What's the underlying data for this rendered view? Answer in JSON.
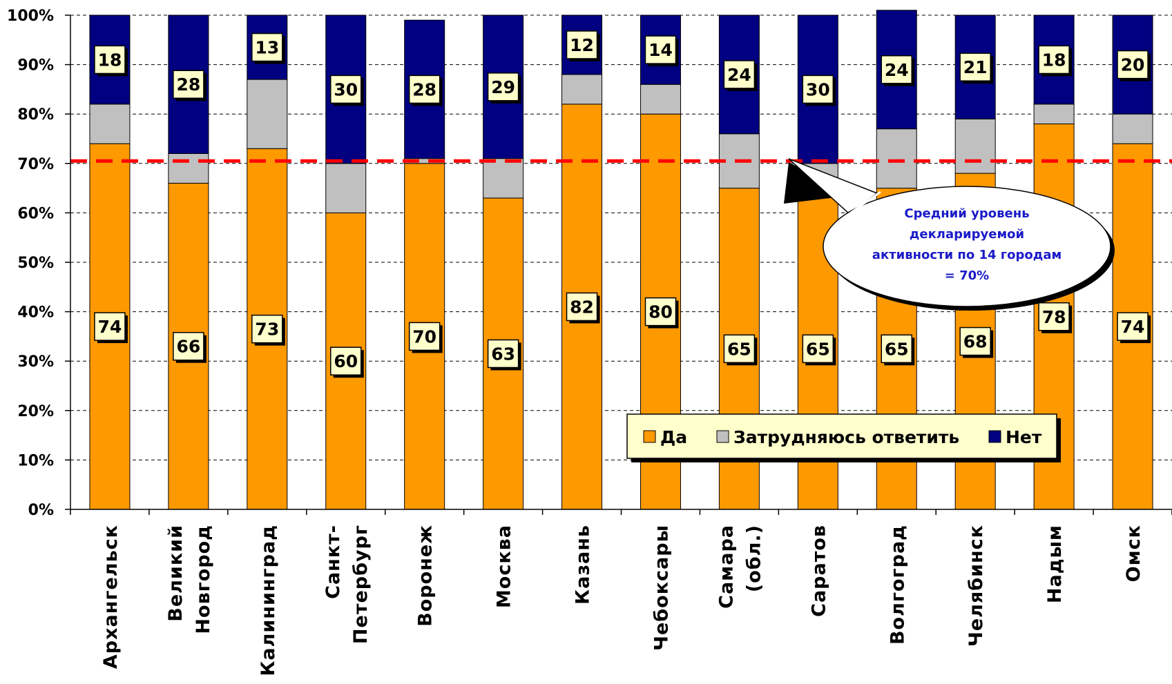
{
  "chart_data": {
    "type": "bar",
    "stacked": true,
    "percent": true,
    "categories": [
      [
        "Архангельск"
      ],
      [
        "Великий",
        "Новгород"
      ],
      [
        "Калининград"
      ],
      [
        "Санкт-",
        "Петербург"
      ],
      [
        "Воронеж"
      ],
      [
        "Москва"
      ],
      [
        "Казань"
      ],
      [
        "Чебоксары"
      ],
      [
        "Самара",
        "(обл.)"
      ],
      [
        "Саратов"
      ],
      [
        "Волгоград"
      ],
      [
        "Челябинск"
      ],
      [
        "Надым"
      ],
      [
        "Омск"
      ]
    ],
    "series": [
      {
        "name": "Да",
        "color": "#FF9900",
        "values": [
          74,
          66,
          73,
          60,
          70,
          63,
          82,
          80,
          65,
          65,
          65,
          68,
          78,
          74
        ]
      },
      {
        "name": "Затрудняюсь ответить",
        "color": "#C0C0C0",
        "values": [
          8,
          6,
          14,
          10,
          1,
          8,
          6,
          6,
          11,
          5,
          12,
          11,
          4,
          6
        ]
      },
      {
        "name": "Нет",
        "color": "#000080",
        "values": [
          18,
          28,
          13,
          30,
          28,
          29,
          12,
          14,
          24,
          30,
          24,
          21,
          18,
          20
        ]
      }
    ],
    "labeled_series": [
      "Да",
      "Нет"
    ],
    "ylim": [
      0,
      100
    ],
    "yticks": [
      "0%",
      "10%",
      "20%",
      "30%",
      "40%",
      "50%",
      "60%",
      "70%",
      "80%",
      "90%",
      "100%"
    ],
    "grid": true,
    "legend": "bottom-right",
    "reference_line": {
      "value": 70.5,
      "color": "#FF0000"
    },
    "annotation": {
      "lines": [
        "Средний уровень",
        "декларируемой",
        "активности по 14 городам",
        "= 70%"
      ],
      "color": "#1a1ac8"
    },
    "label_box_color": "#FFFFCC"
  }
}
